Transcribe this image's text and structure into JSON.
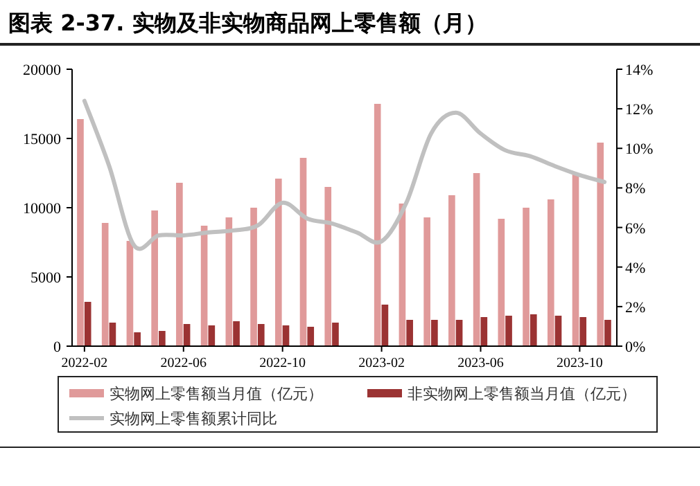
{
  "chart_data": {
    "type": "bar",
    "title": "图表 2-37. 实物及非实物商品网上零售额（月）",
    "categories": [
      "2022-02",
      null,
      null,
      null,
      "2022-06",
      null,
      null,
      null,
      "2022-10",
      null,
      null,
      null,
      "2023-02",
      null,
      null,
      null,
      "2023-06",
      null,
      null,
      null,
      "2023-10",
      null
    ],
    "series": [
      {
        "name": "实物网上零售额当月值（亿元）",
        "color": "#e09a9a",
        "values": [
          16400,
          8900,
          7600,
          9800,
          11800,
          8700,
          9300,
          10000,
          12100,
          13600,
          11500,
          null,
          17500,
          10300,
          9300,
          10900,
          12500,
          9200,
          10000,
          10600,
          12500,
          14700
        ]
      },
      {
        "name": "非实物网上零售额当月值（亿元）",
        "color": "#9b3333",
        "values": [
          3200,
          1700,
          1000,
          1100,
          1600,
          1500,
          1800,
          1600,
          1500,
          1400,
          1700,
          null,
          3000,
          1900,
          1900,
          1900,
          2100,
          2200,
          2300,
          2200,
          2100,
          1900
        ]
      },
      {
        "name": "实物网上零售额累计同比",
        "type": "line",
        "axis": "y2",
        "color": "#c0c0c0",
        "values": [
          12.4,
          9.1,
          5.1,
          5.6,
          5.6,
          5.75,
          5.85,
          6.1,
          7.25,
          6.45,
          6.2,
          5.75,
          5.3,
          7.25,
          10.75,
          11.8,
          10.75,
          9.9,
          9.6,
          9.1,
          8.65,
          8.3
        ]
      }
    ],
    "ylim": [
      0,
      20000
    ],
    "yticks": [
      0,
      5000,
      10000,
      15000,
      20000
    ],
    "y2lim": [
      0,
      14
    ],
    "y2ticks": [
      {
        "value": 0,
        "label": "0%"
      },
      {
        "value": 2,
        "label": "2%"
      },
      {
        "value": 4,
        "label": "4%"
      },
      {
        "value": 6,
        "label": "6%"
      },
      {
        "value": 8,
        "label": "8%"
      },
      {
        "value": 10,
        "label": "10%"
      },
      {
        "value": 12,
        "label": "12%"
      },
      {
        "value": 14,
        "label": "14%"
      }
    ],
    "grid": false,
    "legend": "bottom"
  }
}
